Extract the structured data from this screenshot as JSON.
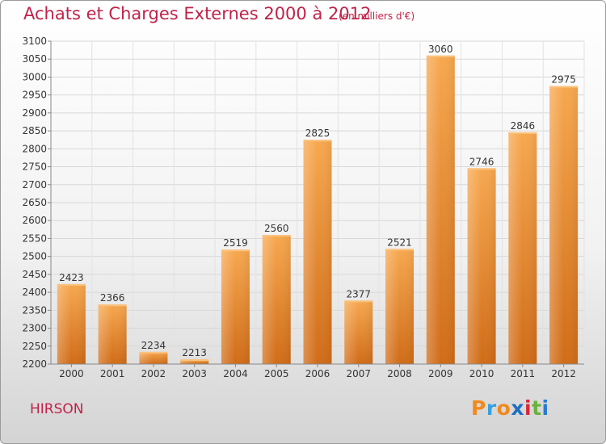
{
  "title": "Achats et Charges Externes 2000 à 2012",
  "subtitle": "(en milliers d'€)",
  "location": "HIRSON",
  "logo": {
    "letters": [
      "P",
      "r",
      "o",
      "x",
      "i",
      "t",
      "i"
    ],
    "colors": [
      "#f08a1d",
      "#3aa0dc",
      "#f08a1d",
      "#1f6fc0",
      "#d8283a",
      "#6ab23e",
      "#2a7bd0"
    ]
  },
  "colors": {
    "bar": "#f08a2a",
    "bar_light": "#f7ad5f",
    "bar_dark": "#d06c18",
    "title": "#c0234a"
  },
  "chart_data": {
    "type": "bar",
    "categories": [
      "2000",
      "2001",
      "2002",
      "2003",
      "2004",
      "2005",
      "2006",
      "2007",
      "2008",
      "2009",
      "2010",
      "2011",
      "2012"
    ],
    "values": [
      2423,
      2366,
      2234,
      2213,
      2519,
      2560,
      2825,
      2377,
      2521,
      3060,
      2746,
      2846,
      2975
    ],
    "ylim": [
      2200,
      3100
    ],
    "yticks": [
      2200,
      2250,
      2300,
      2350,
      2400,
      2450,
      2500,
      2550,
      2600,
      2650,
      2700,
      2750,
      2800,
      2850,
      2900,
      2950,
      3000,
      3050,
      3100
    ],
    "grid": true
  }
}
